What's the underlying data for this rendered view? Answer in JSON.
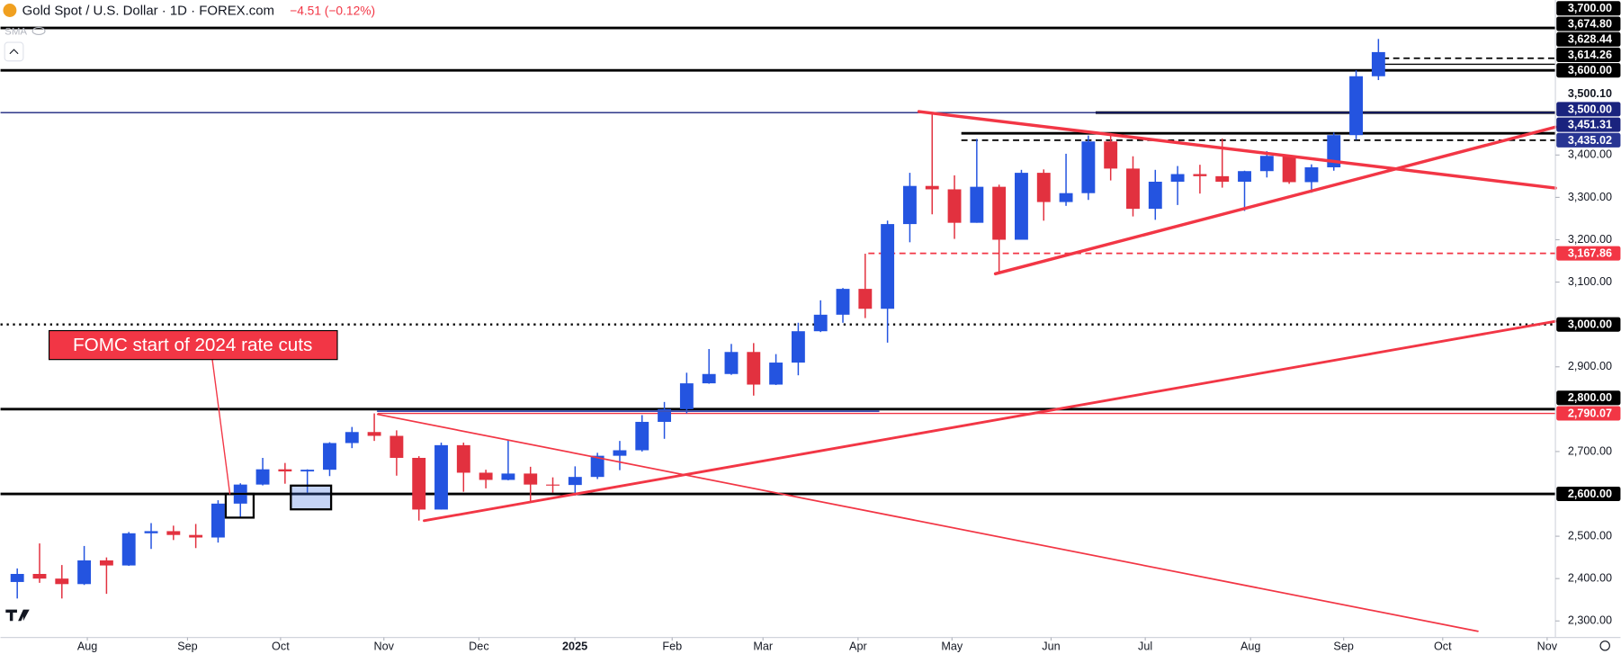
{
  "chart_data": {
    "type": "candlestick",
    "title": "Gold Spot / U.S. Dollar · 1D · FOREX.com",
    "change": "−4.51 (−0.12%)",
    "indicator": "SMA",
    "annotation": "FOMC start of 2024 rate cuts",
    "up_color": "#2454e0",
    "down_color": "#e2313f",
    "open": [
      2392,
      2411,
      2400,
      2387,
      2443,
      2431,
      2507,
      2512,
      2503,
      2497,
      2577,
      2622,
      2658,
      2653,
      2657,
      2720,
      2746,
      2737,
      2685,
      2563,
      2715,
      2650,
      2633,
      2648,
      2622,
      2621,
      2640,
      2690,
      2703,
      2770,
      2800,
      2861,
      2883,
      2935,
      2858,
      2910,
      2984,
      3023,
      3084,
      3037,
      3237,
      3327,
      3319,
      3240,
      3325,
      3200,
      3358,
      3289,
      3310,
      3432,
      3368,
      3273,
      3337,
      3355,
      3350,
      3337,
      3362,
      3398,
      3336,
      3371,
      3447,
      3586
    ],
    "high": [
      2424,
      2483,
      2432,
      2477,
      2450,
      2510,
      2531,
      2525,
      2529,
      2585,
      2625,
      2685,
      2673,
      2658,
      2722,
      2758,
      2790,
      2750,
      2689,
      2721,
      2721,
      2657,
      2726,
      2664,
      2639,
      2665,
      2697,
      2725,
      2786,
      2817,
      2886,
      2942,
      2954,
      2956,
      2930,
      3004,
      3057,
      3086,
      3167,
      3245,
      3358,
      3500,
      3352,
      3438,
      3330,
      3365,
      3366,
      3403,
      3446,
      3452,
      3397,
      3365,
      3374,
      3377,
      3439,
      3363,
      3409,
      3400,
      3378,
      3453,
      3600,
      3674
    ],
    "low": [
      2353,
      2390,
      2353,
      2385,
      2364,
      2430,
      2470,
      2491,
      2472,
      2485,
      2546,
      2620,
      2624,
      2603,
      2642,
      2708,
      2725,
      2643,
      2537,
      2563,
      2605,
      2613,
      2632,
      2583,
      2603,
      2596,
      2635,
      2656,
      2700,
      2730,
      2790,
      2860,
      2881,
      2832,
      2857,
      2880,
      2982,
      3004,
      3015,
      2957,
      3194,
      3260,
      3202,
      3240,
      3120,
      3205,
      3245,
      3280,
      3294,
      3340,
      3255,
      3247,
      3282,
      3309,
      3323,
      3268,
      3347,
      3332,
      3311,
      3363,
      3436,
      3577
    ],
    "close": [
      2411,
      2400,
      2387,
      2443,
      2431,
      2507,
      2512,
      2503,
      2497,
      2577,
      2622,
      2658,
      2653,
      2657,
      2720,
      2746,
      2737,
      2685,
      2563,
      2715,
      2650,
      2633,
      2648,
      2622,
      2621,
      2640,
      2690,
      2703,
      2770,
      2800,
      2861,
      2883,
      2935,
      2858,
      2910,
      2984,
      3023,
      3084,
      3037,
      3237,
      3327,
      3319,
      3240,
      3325,
      3200,
      3358,
      3289,
      3310,
      3432,
      3368,
      3273,
      3337,
      3355,
      3350,
      3337,
      3362,
      3398,
      3336,
      3371,
      3447,
      3586,
      3643
    ],
    "xlim": [
      -0.75,
      68.93
    ],
    "xticks": [
      {
        "value": 3.14,
        "label": "Aug"
      },
      {
        "value": 7.63,
        "label": "Sep"
      },
      {
        "value": 11.8,
        "label": "Oct"
      },
      {
        "value": 16.43,
        "label": "Nov"
      },
      {
        "value": 20.69,
        "label": "Dec"
      },
      {
        "value": 24.99,
        "label": "2025"
      },
      {
        "value": 29.35,
        "label": "Feb"
      },
      {
        "value": 33.42,
        "label": "Mar"
      },
      {
        "value": 37.68,
        "label": "Apr"
      },
      {
        "value": 41.89,
        "label": "May"
      },
      {
        "value": 46.33,
        "label": "Jun"
      },
      {
        "value": 50.55,
        "label": "Jul"
      },
      {
        "value": 55.27,
        "label": "Aug"
      },
      {
        "value": 59.44,
        "label": "Sep"
      },
      {
        "value": 63.88,
        "label": "Oct"
      },
      {
        "value": 68.56,
        "label": "Nov"
      }
    ],
    "ylim": [
      2261,
      3766
    ],
    "yticks": [
      {
        "value": 2300,
        "label": "2,300.00"
      },
      {
        "value": 2400,
        "label": "2,400.00"
      },
      {
        "value": 2500,
        "label": "2,500.00"
      },
      {
        "value": 2700,
        "label": "2,700.00"
      },
      {
        "value": 2900,
        "label": "2,900.00"
      },
      {
        "value": 3100,
        "label": "3,100.00"
      },
      {
        "value": 3200,
        "label": "3,200.00"
      },
      {
        "value": 3300,
        "label": "3,300.00"
      },
      {
        "value": 3400,
        "label": "3,400.00"
      }
    ],
    "last_price": {
      "value": 3674.8,
      "label": "3,674.80",
      "label_bg": "#000000"
    },
    "levels": [
      {
        "value": 3700,
        "label": "3,700.00",
        "color": "#000000",
        "label_bg": "#000000",
        "style": "solid"
      },
      {
        "value": 3628.44,
        "label": "3,628.44",
        "color": "#000000",
        "label_bg": "#000000",
        "style": "dashed"
      },
      {
        "value": 3614.26,
        "label": "3,614.26",
        "color": "#000000",
        "label_bg": "#000000",
        "style": "thin"
      },
      {
        "value": 3600,
        "label": "3,600.00",
        "color": "#000000",
        "label_bg": "#000000",
        "style": "solid"
      },
      {
        "value": 3500.1,
        "label": "3,500.10",
        "color": "#000000",
        "label_bg": "#ffffff",
        "style": "solid"
      },
      {
        "value": 3500,
        "label": "3,500.00",
        "color": "#1a237e",
        "label_bg": "#1a237e",
        "style": "thin"
      },
      {
        "value": 3451.31,
        "label": "3,451.31",
        "color": "#000000",
        "label_bg": "#1a237e",
        "style": "solid"
      },
      {
        "value": 3435.02,
        "label": "3,435.02",
        "color": "#000000",
        "label_bg": "#283593",
        "style": "dashed"
      },
      {
        "value": 3167.86,
        "label": "3,167.86",
        "color": "#f23645",
        "label_bg": "#f23645",
        "style": "dashed"
      },
      {
        "value": 3000,
        "label": "3,000.00",
        "color": "#000000",
        "label_bg": "#000000",
        "style": "dotted"
      },
      {
        "value": 2800,
        "label": "2,800.00",
        "color": "#000000",
        "label_bg": "#000000",
        "style": "solid"
      },
      {
        "value": 2790.07,
        "label": "2,790.07",
        "color": "#f23645",
        "label_bg": "#f23645",
        "style": "thin"
      },
      {
        "value": 2600,
        "label": "2,600.00",
        "color": "#000000",
        "label_bg": "#000000",
        "style": "solid"
      }
    ]
  }
}
